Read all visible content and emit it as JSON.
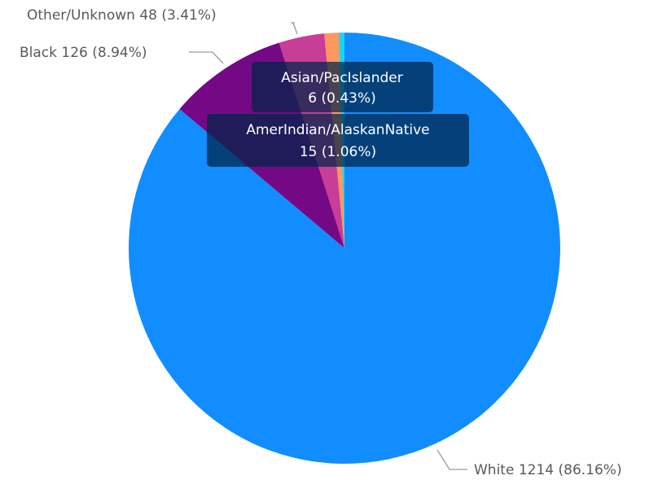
{
  "chart_data": {
    "type": "pie",
    "title": "",
    "slices": [
      {
        "name": "White",
        "value": 1214,
        "percent": "86.16%",
        "color": "#118DFF",
        "label": "White 1214 (86.16%)"
      },
      {
        "name": "Black",
        "value": 126,
        "percent": "8.94%",
        "color": "#750985",
        "label": "Black 126 (8.94%)"
      },
      {
        "name": "Other/Unknown",
        "value": 48,
        "percent": "3.41%",
        "color": "#C83D95",
        "label": "Other/Unknown 48 (3.41%)"
      },
      {
        "name": "AmerIndian/AlaskanNative",
        "value": 15,
        "percent": "1.06%",
        "color": "#FF985E",
        "label_line1": "AmerIndian/AlaskanNative",
        "label_line2": "15 (1.06%)"
      },
      {
        "name": "Asian/PacIslander",
        "value": 6,
        "percent": "0.43%",
        "color": "#1DD5EE",
        "label_line1": "Asian/PacIslander",
        "label_line2": "6 (0.43%)"
      }
    ]
  }
}
